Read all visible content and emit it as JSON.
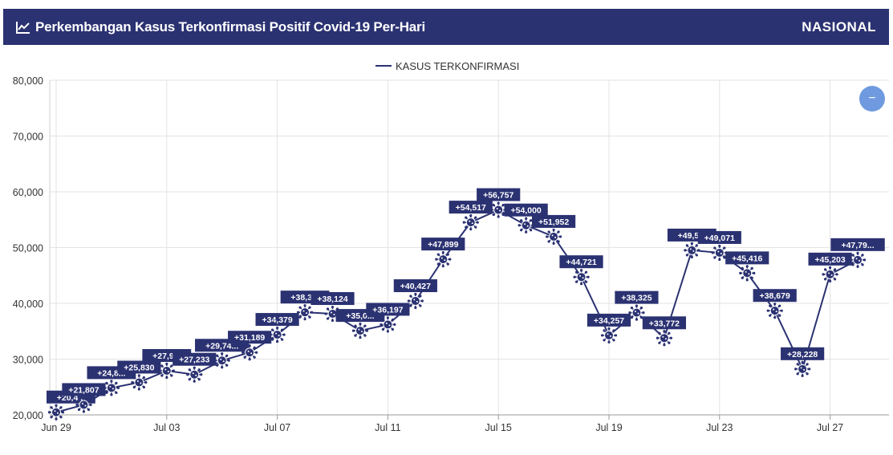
{
  "header": {
    "title": "Perkembangan Kasus Terkonfirmasi Positif Covid-19 Per-Hari",
    "badge": "NASIONAL",
    "icon": "line-chart-icon"
  },
  "zoom_button": {
    "label": "−",
    "icon": "minus-icon"
  },
  "colors": {
    "header_bg": "#2b3272",
    "series": "#2b3272",
    "grid": "#e3e3e3",
    "zoom": "#6f9ae0"
  },
  "chart_data": {
    "type": "line",
    "legend": "KASUS TERKONFIRMASI",
    "legend_position": "top-center",
    "grid": true,
    "ylim": [
      20000,
      80000
    ],
    "yticks": [
      20000,
      30000,
      40000,
      50000,
      60000,
      70000,
      80000
    ],
    "ytick_labels": [
      "20,000",
      "30,000",
      "40,000",
      "50,000",
      "60,000",
      "70,000",
      "80,000"
    ],
    "xticks": [
      "Jun 29",
      "Jul 03",
      "Jul 07",
      "Jul 11",
      "Jul 15",
      "Jul 19",
      "Jul 23",
      "Jul 27"
    ],
    "series": [
      {
        "name": "KASUS TERKONFIRMASI",
        "x": [
          "Jun 29",
          "Jun 30",
          "Jul 01",
          "Jul 02",
          "Jul 03",
          "Jul 04",
          "Jul 05",
          "Jul 06",
          "Jul 07",
          "Jul 08",
          "Jul 09",
          "Jul 10",
          "Jul 11",
          "Jul 12",
          "Jul 13",
          "Jul 14",
          "Jul 15",
          "Jul 16",
          "Jul 17",
          "Jul 18",
          "Jul 19",
          "Jul 20",
          "Jul 21",
          "Jul 22",
          "Jul 23",
          "Jul 24",
          "Jul 25",
          "Jul 26",
          "Jul 27",
          "Jul 28"
        ],
        "values": [
          20467,
          21807,
          24836,
          25830,
          27913,
          27233,
          29745,
          31189,
          34379,
          38391,
          38124,
          35094,
          36197,
          40427,
          47899,
          54517,
          56757,
          54000,
          51952,
          44721,
          34257,
          38325,
          33772,
          49509,
          49071,
          45416,
          38679,
          28228,
          45203,
          47791
        ],
        "labels": [
          "+20,4...",
          "+21,807",
          "+24,8...",
          "+25,830",
          "+27,9...",
          "+27,233",
          "+29,74...",
          "+31,189",
          "+34,379",
          "+38,3...",
          "+38,124",
          "+35,0...",
          "+36,197",
          "+40,427",
          "+47,899",
          "+54,517",
          "+56,757",
          "+54,000",
          "+51,952",
          "+44,721",
          "+34,257",
          "+38,325",
          "+33,772",
          "+49,5...",
          "+49,071",
          "+45,416",
          "+38,679",
          "+28,228",
          "+45,203",
          "+47,79..."
        ]
      }
    ]
  }
}
